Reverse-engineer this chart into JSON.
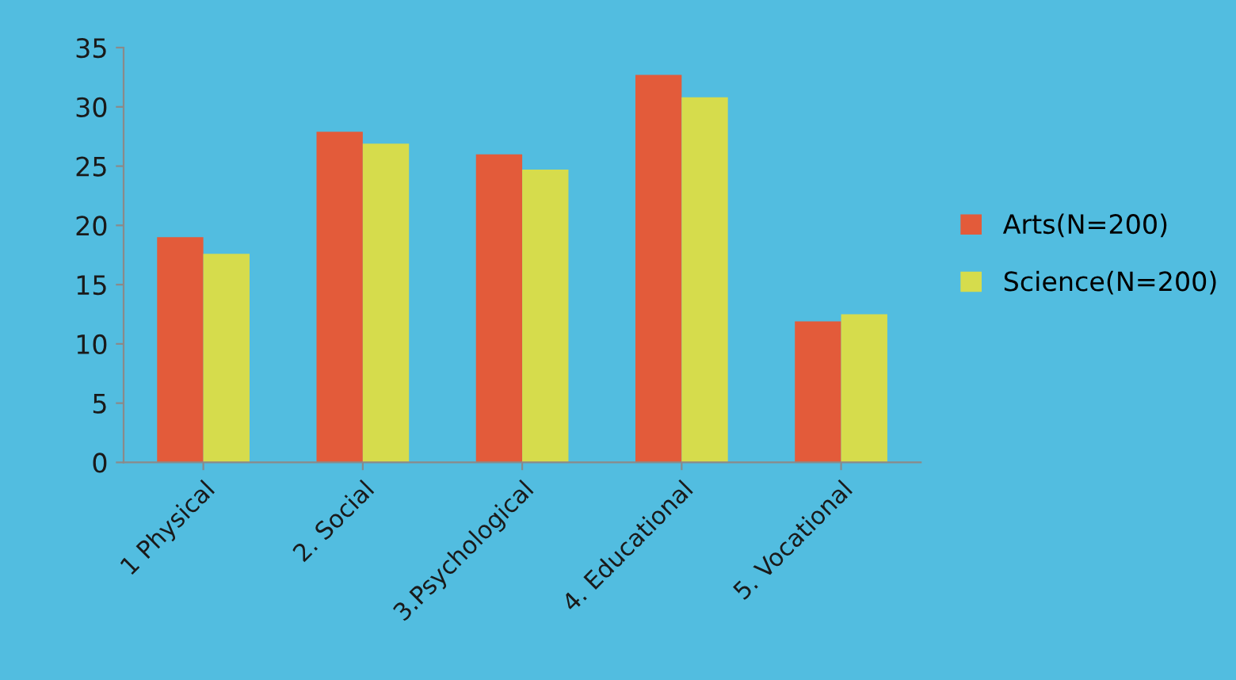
{
  "chart_data": {
    "type": "bar",
    "categories": [
      "1 Physical",
      "2. Social",
      "3.Psychological",
      "4. Educational",
      "5. Vocational"
    ],
    "series": [
      {
        "name": "Arts(N=200)",
        "color": "#e35b3a",
        "values": [
          19.0,
          27.9,
          26.0,
          32.7,
          11.9
        ]
      },
      {
        "name": "Science(N=200)",
        "color": "#d6dc4c",
        "values": [
          17.6,
          26.9,
          24.7,
          30.8,
          12.5
        ]
      }
    ],
    "ylim": [
      0,
      35
    ],
    "yticks": [
      0,
      5,
      10,
      15,
      20,
      25,
      30,
      35
    ],
    "grid": false,
    "legend": "right"
  }
}
